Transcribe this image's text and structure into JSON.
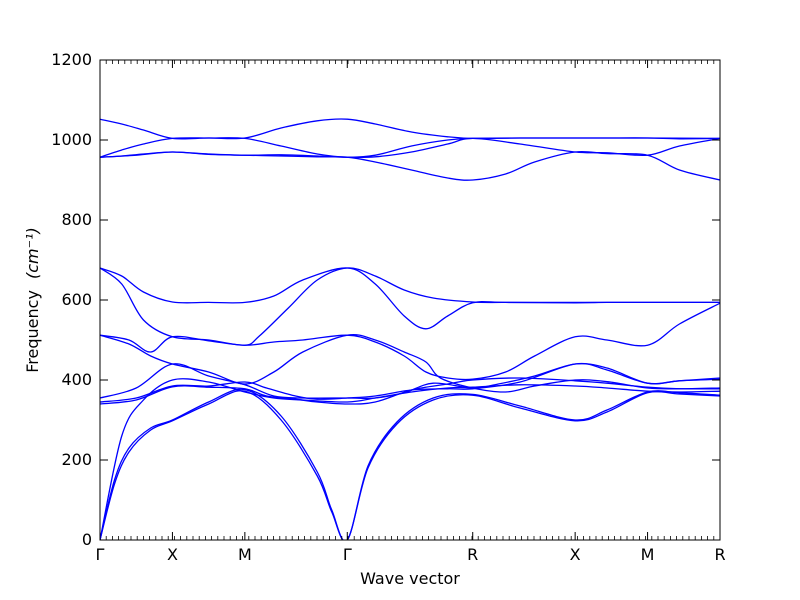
{
  "chart_data": {
    "type": "line",
    "xlabel": "Wave vector",
    "ylabel": "Frequency",
    "ylabel_unit": "(cm⁻¹)",
    "ylim": [
      0,
      1200
    ],
    "y_ticks": [
      0,
      200,
      400,
      600,
      800,
      1000,
      1200
    ],
    "x_range": [
      0,
      8.5
    ],
    "k_points": [
      {
        "label": "Γ",
        "x": 0
      },
      {
        "label": "X",
        "x": 1
      },
      {
        "label": "M",
        "x": 2
      },
      {
        "label": "Γ",
        "x": 3.414
      },
      {
        "label": "R",
        "x": 5.146
      },
      {
        "label": "X",
        "x": 6.56
      },
      {
        "label": "M",
        "x": 7.56
      },
      {
        "label": "R",
        "x": 8.56
      }
    ],
    "line_color": "#0000ff",
    "grid": false,
    "series": [
      {
        "values": [
          [
            0,
            0
          ],
          [
            0.2,
            140
          ],
          [
            0.4,
            220
          ],
          [
            0.7,
            275
          ],
          [
            1.0,
            298
          ],
          [
            1.5,
            340
          ],
          [
            2.0,
            372
          ],
          [
            2.5,
            300
          ],
          [
            3.0,
            160
          ],
          [
            3.2,
            70
          ],
          [
            3.414,
            0
          ],
          [
            3.7,
            180
          ],
          [
            4.1,
            290
          ],
          [
            4.6,
            350
          ],
          [
            5.146,
            362
          ],
          [
            5.8,
            330
          ],
          [
            6.56,
            298
          ],
          [
            7.0,
            320
          ],
          [
            7.56,
            368
          ],
          [
            8.0,
            365
          ],
          [
            8.56,
            360
          ]
        ]
      },
      {
        "values": [
          [
            0,
            0
          ],
          [
            0.2,
            150
          ],
          [
            0.4,
            230
          ],
          [
            0.7,
            280
          ],
          [
            1.0,
            300
          ],
          [
            1.5,
            345
          ],
          [
            2.0,
            376
          ],
          [
            2.5,
            310
          ],
          [
            3.0,
            170
          ],
          [
            3.2,
            75
          ],
          [
            3.414,
            0
          ],
          [
            3.7,
            185
          ],
          [
            4.1,
            295
          ],
          [
            4.6,
            355
          ],
          [
            5.146,
            364
          ],
          [
            5.8,
            335
          ],
          [
            6.56,
            300
          ],
          [
            7.0,
            325
          ],
          [
            7.56,
            370
          ],
          [
            8.0,
            368
          ],
          [
            8.56,
            362
          ]
        ]
      },
      {
        "values": [
          [
            0,
            0
          ],
          [
            0.3,
            260
          ],
          [
            0.6,
            350
          ],
          [
            1.0,
            400
          ],
          [
            1.5,
            395
          ],
          [
            2.0,
            370
          ],
          [
            2.4,
            355
          ],
          [
            2.8,
            350
          ],
          [
            3.414,
            345
          ],
          [
            3.8,
            355
          ],
          [
            4.3,
            370
          ],
          [
            4.8,
            380
          ],
          [
            5.146,
            382
          ],
          [
            5.8,
            388
          ],
          [
            6.56,
            385
          ],
          [
            7.0,
            380
          ],
          [
            7.56,
            372
          ],
          [
            8.0,
            370
          ],
          [
            8.56,
            372
          ]
        ]
      },
      {
        "values": [
          [
            0,
            340
          ],
          [
            0.5,
            350
          ],
          [
            1.0,
            383
          ],
          [
            1.5,
            382
          ],
          [
            2.0,
            378
          ],
          [
            2.3,
            360
          ],
          [
            2.7,
            352
          ],
          [
            3.0,
            345
          ],
          [
            3.414,
            340
          ],
          [
            3.8,
            345
          ],
          [
            4.3,
            375
          ],
          [
            4.8,
            390
          ],
          [
            5.146,
            400
          ],
          [
            5.8,
            405
          ],
          [
            6.56,
            398
          ],
          [
            7.0,
            392
          ],
          [
            7.56,
            382
          ],
          [
            8.0,
            378
          ],
          [
            8.56,
            378
          ]
        ]
      },
      {
        "values": [
          [
            0,
            345
          ],
          [
            0.5,
            355
          ],
          [
            1.0,
            385
          ],
          [
            1.5,
            385
          ],
          [
            2.0,
            395
          ],
          [
            2.3,
            380
          ],
          [
            2.7,
            360
          ],
          [
            3.0,
            352
          ],
          [
            3.414,
            355
          ],
          [
            3.8,
            360
          ],
          [
            4.3,
            375
          ],
          [
            4.8,
            378
          ],
          [
            5.146,
            378
          ],
          [
            5.8,
            395
          ],
          [
            6.56,
            440
          ],
          [
            7.0,
            425
          ],
          [
            7.56,
            392
          ],
          [
            8.0,
            398
          ],
          [
            8.56,
            402
          ]
        ]
      },
      {
        "values": [
          [
            0,
            355
          ],
          [
            0.5,
            380
          ],
          [
            1.0,
            440
          ],
          [
            1.5,
            410
          ],
          [
            2.0,
            388
          ],
          [
            2.4,
            360
          ],
          [
            2.8,
            355
          ],
          [
            3.414,
            355
          ],
          [
            3.8,
            355
          ],
          [
            4.2,
            368
          ],
          [
            4.6,
            392
          ],
          [
            5.146,
            380
          ],
          [
            5.5,
            390
          ],
          [
            6.0,
            410
          ],
          [
            6.56,
            440
          ],
          [
            7.0,
            430
          ],
          [
            7.56,
            392
          ],
          [
            8.0,
            398
          ],
          [
            8.56,
            405
          ]
        ]
      },
      {
        "values": [
          [
            0,
            512
          ],
          [
            0.4,
            490
          ],
          [
            0.7,
            460
          ],
          [
            1.0,
            440
          ],
          [
            1.5,
            420
          ],
          [
            2.0,
            390
          ],
          [
            2.4,
            420
          ],
          [
            2.8,
            470
          ],
          [
            3.414,
            512
          ],
          [
            3.8,
            500
          ],
          [
            4.2,
            470
          ],
          [
            4.5,
            445
          ],
          [
            4.7,
            405
          ],
          [
            5.146,
            380
          ],
          [
            5.6,
            370
          ],
          [
            6.0,
            385
          ],
          [
            6.56,
            400
          ],
          [
            7.0,
            396
          ],
          [
            7.56,
            380
          ],
          [
            8.0,
            378
          ],
          [
            8.56,
            380
          ]
        ]
      },
      {
        "values": [
          [
            0,
            512
          ],
          [
            0.4,
            500
          ],
          [
            0.7,
            470
          ],
          [
            1.0,
            508
          ],
          [
            1.5,
            498
          ],
          [
            2.0,
            487
          ],
          [
            2.4,
            495
          ],
          [
            2.8,
            500
          ],
          [
            3.414,
            512
          ],
          [
            3.8,
            495
          ],
          [
            4.2,
            460
          ],
          [
            4.5,
            420
          ],
          [
            4.8,
            405
          ],
          [
            5.146,
            402
          ],
          [
            5.6,
            420
          ],
          [
            6.0,
            460
          ],
          [
            6.56,
            508
          ],
          [
            7.0,
            500
          ],
          [
            7.56,
            487
          ],
          [
            8.0,
            540
          ],
          [
            8.56,
            592
          ]
        ]
      },
      {
        "values": [
          [
            0,
            680
          ],
          [
            0.3,
            660
          ],
          [
            0.6,
            620
          ],
          [
            1.0,
            595
          ],
          [
            1.5,
            594
          ],
          [
            2.0,
            594
          ],
          [
            2.4,
            610
          ],
          [
            2.8,
            650
          ],
          [
            3.414,
            680
          ],
          [
            3.8,
            640
          ],
          [
            4.2,
            560
          ],
          [
            4.5,
            528
          ],
          [
            4.8,
            560
          ],
          [
            5.146,
            593
          ],
          [
            5.6,
            594
          ],
          [
            6.56,
            593
          ],
          [
            7.0,
            594
          ],
          [
            7.56,
            594
          ],
          [
            8.0,
            594
          ],
          [
            8.56,
            594
          ]
        ]
      },
      {
        "values": [
          [
            0,
            680
          ],
          [
            0.3,
            640
          ],
          [
            0.6,
            550
          ],
          [
            1.0,
            508
          ],
          [
            1.5,
            500
          ],
          [
            2.0,
            487
          ],
          [
            2.2,
            510
          ],
          [
            2.6,
            580
          ],
          [
            3.0,
            650
          ],
          [
            3.414,
            680
          ],
          [
            3.8,
            660
          ],
          [
            4.2,
            625
          ],
          [
            4.6,
            605
          ],
          [
            5.146,
            595
          ],
          [
            5.6,
            594
          ],
          [
            6.56,
            594
          ],
          [
            7.56,
            594
          ],
          [
            8.56,
            594
          ]
        ]
      },
      {
        "values": [
          [
            0,
            957
          ],
          [
            0.3,
            960
          ],
          [
            0.6,
            965
          ],
          [
            1.0,
            970
          ],
          [
            1.5,
            965
          ],
          [
            2.0,
            962
          ],
          [
            2.5,
            963
          ],
          [
            3.0,
            960
          ],
          [
            3.414,
            957
          ],
          [
            3.8,
            958
          ],
          [
            4.3,
            970
          ],
          [
            4.8,
            990
          ],
          [
            5.146,
            1004
          ],
          [
            5.8,
            990
          ],
          [
            6.56,
            970
          ],
          [
            7.0,
            968
          ],
          [
            7.56,
            962
          ],
          [
            8.0,
            985
          ],
          [
            8.56,
            1004
          ]
        ]
      },
      {
        "values": [
          [
            0,
            957
          ],
          [
            0.3,
            975
          ],
          [
            0.6,
            990
          ],
          [
            1.0,
            1004
          ],
          [
            1.5,
            1005
          ],
          [
            2.0,
            1004
          ],
          [
            2.5,
            985
          ],
          [
            3.0,
            965
          ],
          [
            3.414,
            957
          ],
          [
            3.8,
            962
          ],
          [
            4.3,
            985
          ],
          [
            4.8,
            1000
          ],
          [
            5.146,
            1004
          ],
          [
            5.8,
            1005
          ],
          [
            6.56,
            1005
          ],
          [
            7.0,
            1005
          ],
          [
            7.56,
            1005
          ],
          [
            8.0,
            1003
          ],
          [
            8.56,
            1004
          ]
        ]
      },
      {
        "values": [
          [
            0,
            1052
          ],
          [
            0.3,
            1040
          ],
          [
            0.6,
            1025
          ],
          [
            1.0,
            1004
          ],
          [
            1.5,
            1005
          ],
          [
            2.0,
            1005
          ],
          [
            2.5,
            1030
          ],
          [
            3.0,
            1048
          ],
          [
            3.414,
            1052
          ],
          [
            3.8,
            1040
          ],
          [
            4.3,
            1020
          ],
          [
            4.8,
            1008
          ],
          [
            5.146,
            1004
          ],
          [
            5.8,
            1005
          ],
          [
            6.56,
            1005
          ],
          [
            7.56,
            1005
          ],
          [
            8.56,
            1004
          ]
        ]
      },
      {
        "values": [
          [
            0,
            957
          ],
          [
            0.5,
            962
          ],
          [
            1.0,
            970
          ],
          [
            1.5,
            964
          ],
          [
            2.0,
            962
          ],
          [
            2.5,
            960
          ],
          [
            3.0,
            958
          ],
          [
            3.414,
            957
          ],
          [
            3.8,
            945
          ],
          [
            4.3,
            925
          ],
          [
            4.8,
            905
          ],
          [
            5.146,
            900
          ],
          [
            5.6,
            915
          ],
          [
            6.0,
            945
          ],
          [
            6.56,
            970
          ],
          [
            7.0,
            966
          ],
          [
            7.56,
            962
          ],
          [
            8.0,
            925
          ],
          [
            8.56,
            900
          ]
        ]
      }
    ]
  }
}
